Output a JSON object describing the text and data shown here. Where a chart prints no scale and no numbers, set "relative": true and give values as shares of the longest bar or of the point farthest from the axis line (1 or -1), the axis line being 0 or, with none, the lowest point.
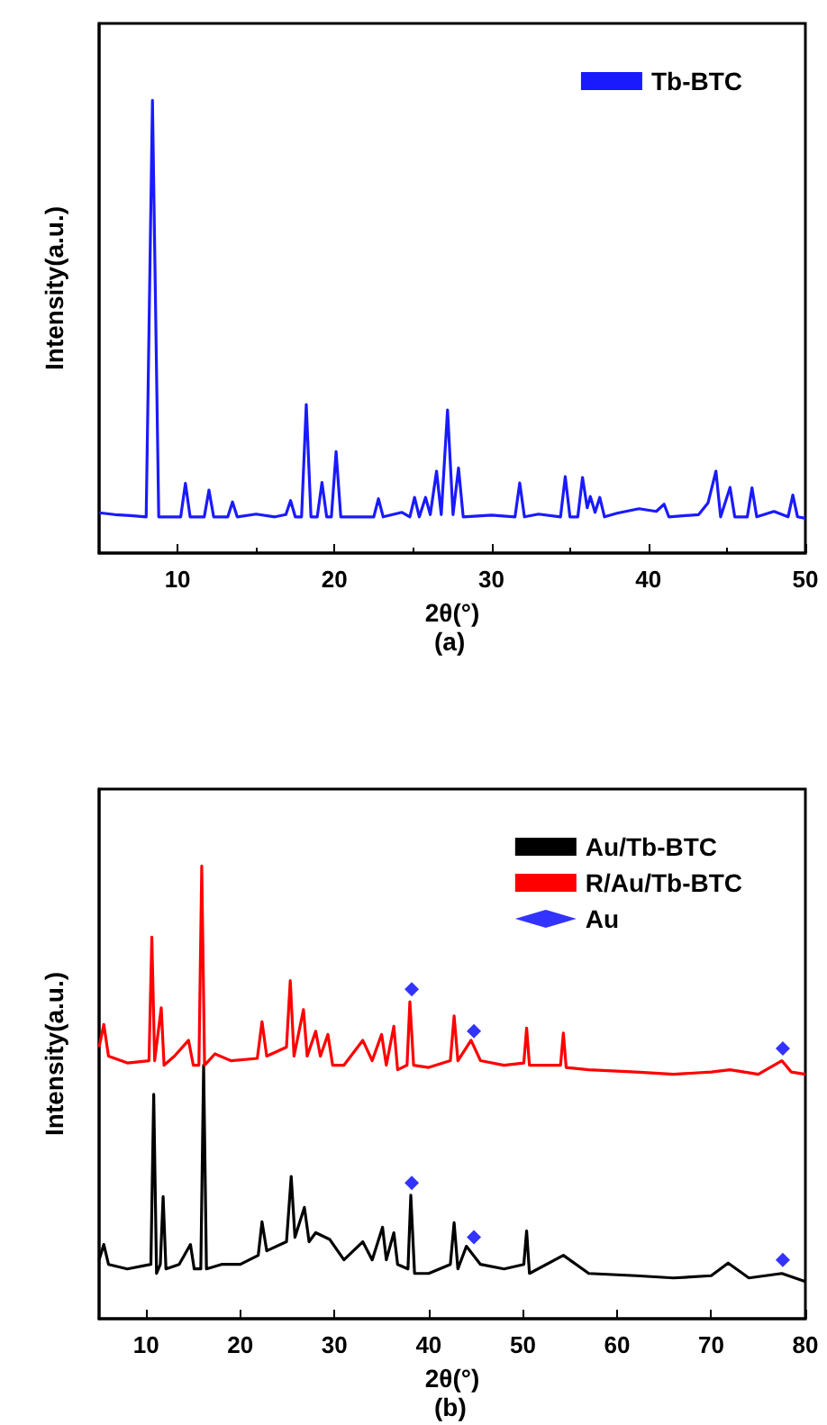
{
  "chart_data": [
    {
      "type": "line",
      "xlabel": "2θ(°)",
      "ylabel": "Intensity(a.u.)",
      "annotations": [
        "(a)"
      ],
      "relative": true,
      "xlim": [
        5,
        50
      ],
      "xticks": [
        10,
        20,
        30,
        40,
        50
      ],
      "legend": "top right",
      "grid": false,
      "marker": "none",
      "line_style": "solid",
      "series": [
        {
          "name": "Tb-BTC",
          "color": "#1a1aff",
          "x": [
            5,
            6,
            7,
            8.0,
            8.4,
            8.8,
            10.2,
            10.5,
            10.8,
            11.7,
            12.0,
            12.3,
            13.2,
            13.5,
            13.8,
            15.0,
            16.2,
            16.9,
            17.2,
            17.5,
            17.9,
            18.2,
            18.5,
            18.9,
            19.2,
            19.5,
            19.8,
            20.1,
            20.4,
            22.5,
            22.8,
            23.1,
            24.3,
            24.8,
            25.1,
            25.4,
            25.8,
            26.1,
            26.5,
            26.8,
            27.2,
            27.55,
            27.9,
            28.2,
            30,
            31.5,
            31.8,
            32.1,
            33.0,
            34.4,
            34.7,
            35.0,
            35.5,
            35.8,
            36.1,
            36.3,
            36.6,
            36.9,
            37.2,
            38,
            39.4,
            40.5,
            41.0,
            41.3,
            43.2,
            43.8,
            44.3,
            44.6,
            45.2,
            45.5,
            46.3,
            46.6,
            46.9,
            48,
            48.9,
            49.2,
            49.5,
            50
          ],
          "values": [
            0.089,
            0.085,
            0.083,
            0.08,
            1.0,
            0.08,
            0.08,
            0.154,
            0.08,
            0.08,
            0.139,
            0.08,
            0.08,
            0.113,
            0.08,
            0.086,
            0.08,
            0.085,
            0.116,
            0.08,
            0.08,
            0.328,
            0.08,
            0.08,
            0.156,
            0.08,
            0.08,
            0.224,
            0.08,
            0.08,
            0.12,
            0.08,
            0.09,
            0.08,
            0.123,
            0.08,
            0.123,
            0.085,
            0.181,
            0.085,
            0.316,
            0.085,
            0.188,
            0.08,
            0.084,
            0.08,
            0.155,
            0.08,
            0.086,
            0.08,
            0.169,
            0.08,
            0.08,
            0.167,
            0.1,
            0.125,
            0.09,
            0.123,
            0.08,
            0.088,
            0.098,
            0.092,
            0.108,
            0.08,
            0.085,
            0.111,
            0.181,
            0.08,
            0.145,
            0.08,
            0.08,
            0.144,
            0.08,
            0.092,
            0.08,
            0.128,
            0.08,
            0.077
          ]
        }
      ]
    },
    {
      "type": "line",
      "xlabel": "2θ(°)",
      "ylabel": "Intensity(a.u.)",
      "annotations": [
        "(b)"
      ],
      "relative": true,
      "xlim": [
        5,
        80
      ],
      "xticks": [
        10,
        20,
        30,
        40,
        50,
        60,
        70,
        80
      ],
      "legend": "top right",
      "grid": false,
      "marker": "none",
      "line_style": "solid",
      "series": [
        {
          "name": "Au/Tb-BTC",
          "color": "#000000",
          "x": [
            5,
            5.5,
            6,
            8,
            10.5,
            10.8,
            11.1,
            11.5,
            11.8,
            12.1,
            13.5,
            14.7,
            15.1,
            15.8,
            16.1,
            16.4,
            18,
            20,
            21.9,
            22.3,
            22.8,
            24.9,
            25.4,
            25.8,
            26.8,
            27.3,
            28,
            29.5,
            31,
            33,
            34,
            35.1,
            35.5,
            36.3,
            36.7,
            37.8,
            38.1,
            38.5,
            40,
            42.3,
            42.7,
            43.1,
            44,
            45.5,
            48,
            50.1,
            50.4,
            50.7,
            54.3,
            57,
            62,
            66,
            70,
            71.8,
            74,
            77.5,
            80
          ],
          "values": [
            0.13,
            0.164,
            0.12,
            0.11,
            0.12,
            0.496,
            0.1,
            0.12,
            0.27,
            0.11,
            0.12,
            0.164,
            0.11,
            0.11,
            0.56,
            0.11,
            0.12,
            0.12,
            0.14,
            0.214,
            0.15,
            0.17,
            0.314,
            0.18,
            0.246,
            0.17,
            0.19,
            0.175,
            0.13,
            0.17,
            0.13,
            0.202,
            0.13,
            0.19,
            0.12,
            0.11,
            0.273,
            0.1,
            0.1,
            0.12,
            0.212,
            0.11,
            0.16,
            0.12,
            0.11,
            0.12,
            0.194,
            0.1,
            0.14,
            0.1,
            0.095,
            0.09,
            0.095,
            0.123,
            0.09,
            0.1,
            0.082
          ]
        },
        {
          "name": "R/Au/Tb-BTC",
          "color": "#ff0000",
          "x": [
            5,
            5.5,
            6,
            8,
            10.3,
            10.6,
            10.9,
            11.6,
            11.9,
            13,
            14.5,
            15,
            15.6,
            15.9,
            16.2,
            17.3,
            19,
            21.8,
            22.3,
            22.8,
            24.9,
            25.3,
            25.7,
            26.7,
            27.1,
            28,
            28.5,
            29.3,
            29.8,
            31,
            33,
            34,
            35,
            35.5,
            36.3,
            36.7,
            37.7,
            38.0,
            38.4,
            40,
            42.3,
            42.7,
            43.1,
            44.5,
            45.5,
            48,
            50.1,
            50.4,
            50.7,
            52,
            54.0,
            54.3,
            54.6,
            57,
            62,
            66,
            70,
            72,
            75,
            77.5,
            78.5,
            80
          ],
          "values": [
            0.6,
            0.65,
            0.58,
            0.565,
            0.57,
            0.843,
            0.57,
            0.687,
            0.56,
            0.58,
            0.615,
            0.56,
            0.56,
            1.0,
            0.56,
            0.585,
            0.57,
            0.575,
            0.656,
            0.58,
            0.6,
            0.747,
            0.58,
            0.683,
            0.58,
            0.635,
            0.58,
            0.628,
            0.56,
            0.56,
            0.615,
            0.57,
            0.628,
            0.56,
            0.646,
            0.55,
            0.56,
            0.7,
            0.56,
            0.555,
            0.57,
            0.669,
            0.57,
            0.615,
            0.57,
            0.56,
            0.565,
            0.642,
            0.56,
            0.56,
            0.56,
            0.631,
            0.555,
            0.55,
            0.545,
            0.54,
            0.545,
            0.55,
            0.54,
            0.57,
            0.545,
            0.54
          ]
        },
        {
          "name": "Au",
          "type": "scatter",
          "marker": "diamond",
          "color": "#0000ff",
          "x": [
            38.2,
            44.8,
            77.6,
            38.2,
            44.8,
            77.6
          ],
          "values": [
            0.728,
            0.635,
            0.597,
            0.3,
            0.18,
            0.13
          ]
        }
      ]
    }
  ]
}
